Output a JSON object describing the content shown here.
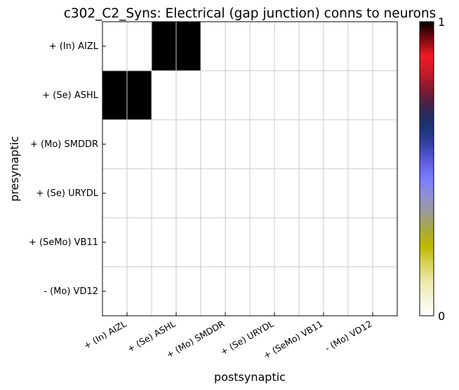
{
  "chart_data": {
    "type": "heatmap",
    "title": "c302_C2_Syns: Electrical (gap junction) conns to neurons",
    "xlabel": "postsynaptic",
    "ylabel": "presynaptic",
    "x_categories": [
      "+ (In) AIZL",
      "+ (Se) ASHL",
      "+ (Mo) SMDDR",
      "+ (Se) URYDL",
      "+ (SeMo) VB11",
      "- (Mo) VD12"
    ],
    "y_categories": [
      "+ (In) AIZL",
      "+ (Se) ASHL",
      "+ (Mo) SMDDR",
      "+ (Se) URYDL",
      "+ (SeMo) VB11",
      "- (Mo) VD12"
    ],
    "values": [
      [
        0,
        1,
        0,
        0,
        0,
        0
      ],
      [
        1,
        0,
        0,
        0,
        0,
        0
      ],
      [
        0,
        0,
        0,
        0,
        0,
        0
      ],
      [
        0,
        0,
        0,
        0,
        0,
        0
      ],
      [
        0,
        0,
        0,
        0,
        0,
        0
      ],
      [
        0,
        0,
        0,
        0,
        0,
        0
      ]
    ],
    "grid": true,
    "colorbar": {
      "min": 0,
      "max": 1,
      "tick_labels": [
        "0",
        "1"
      ],
      "colormap": [
        "#ffffff",
        "#f7f4d8",
        "#ece9a8",
        "#d8d35a",
        "#c0b800",
        "#a8a845",
        "#9a9a9a",
        "#8e8ed8",
        "#7a7aff",
        "#5a5ad8",
        "#2f3f9e",
        "#1a3370",
        "#3a2450",
        "#7a1a30",
        "#c21a2a",
        "#f01a24",
        "#7a0a10",
        "#000000"
      ]
    }
  }
}
